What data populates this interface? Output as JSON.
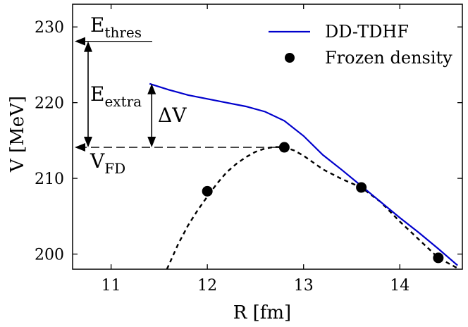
{
  "chart_data": {
    "type": "line",
    "xlabel": "R [fm]",
    "ylabel": "V [MeV]",
    "xlim": [
      10.6,
      14.65
    ],
    "ylim": [
      198,
      233
    ],
    "xticks": [
      11,
      12,
      13,
      14
    ],
    "yticks": [
      200,
      210,
      220,
      230
    ],
    "grid": false,
    "legend_position": "top-right",
    "series": [
      {
        "name": "DD-TDHF",
        "style": "solid-line",
        "color": "#0000cc",
        "x": [
          11.4,
          11.6,
          11.8,
          12.0,
          12.2,
          12.4,
          12.6,
          12.8,
          13.0,
          13.2,
          13.4,
          13.6,
          13.8,
          14.0,
          14.2,
          14.4,
          14.6
        ],
        "y": [
          222.5,
          221.7,
          221.0,
          220.5,
          220.0,
          219.5,
          218.8,
          217.6,
          215.6,
          213.1,
          211.1,
          209.0,
          206.9,
          204.8,
          202.8,
          200.7,
          198.5
        ]
      },
      {
        "name": "Frozen density",
        "style": "markers",
        "color": "#000000",
        "x": [
          12.0,
          12.8,
          13.6,
          14.4
        ],
        "y": [
          208.3,
          214.1,
          208.8,
          199.5
        ]
      },
      {
        "style": "dashed-line",
        "color": "#000000",
        "x": [
          11.58,
          11.7,
          11.8,
          11.9,
          12.0,
          12.1,
          12.2,
          12.3,
          12.4,
          12.5,
          12.6,
          12.7,
          12.8,
          12.9,
          13.0,
          13.2,
          13.4,
          13.6,
          13.8,
          14.0,
          14.2,
          14.4,
          14.62
        ],
        "y": [
          198.0,
          201.4,
          203.8,
          205.8,
          207.6,
          209.3,
          210.8,
          211.9,
          212.8,
          213.5,
          213.95,
          214.15,
          214.1,
          213.7,
          213.0,
          211.2,
          209.9,
          208.8,
          206.9,
          204.3,
          201.9,
          199.5,
          198.0
        ]
      }
    ],
    "annotations": {
      "e_thres": {
        "main": "E",
        "sub": "thres"
      },
      "e_extra": {
        "main": "E",
        "sub": "extra"
      },
      "delta_v": {
        "main": "ΔV"
      },
      "v_fd": {
        "main": "V",
        "sub": "FD"
      }
    }
  }
}
